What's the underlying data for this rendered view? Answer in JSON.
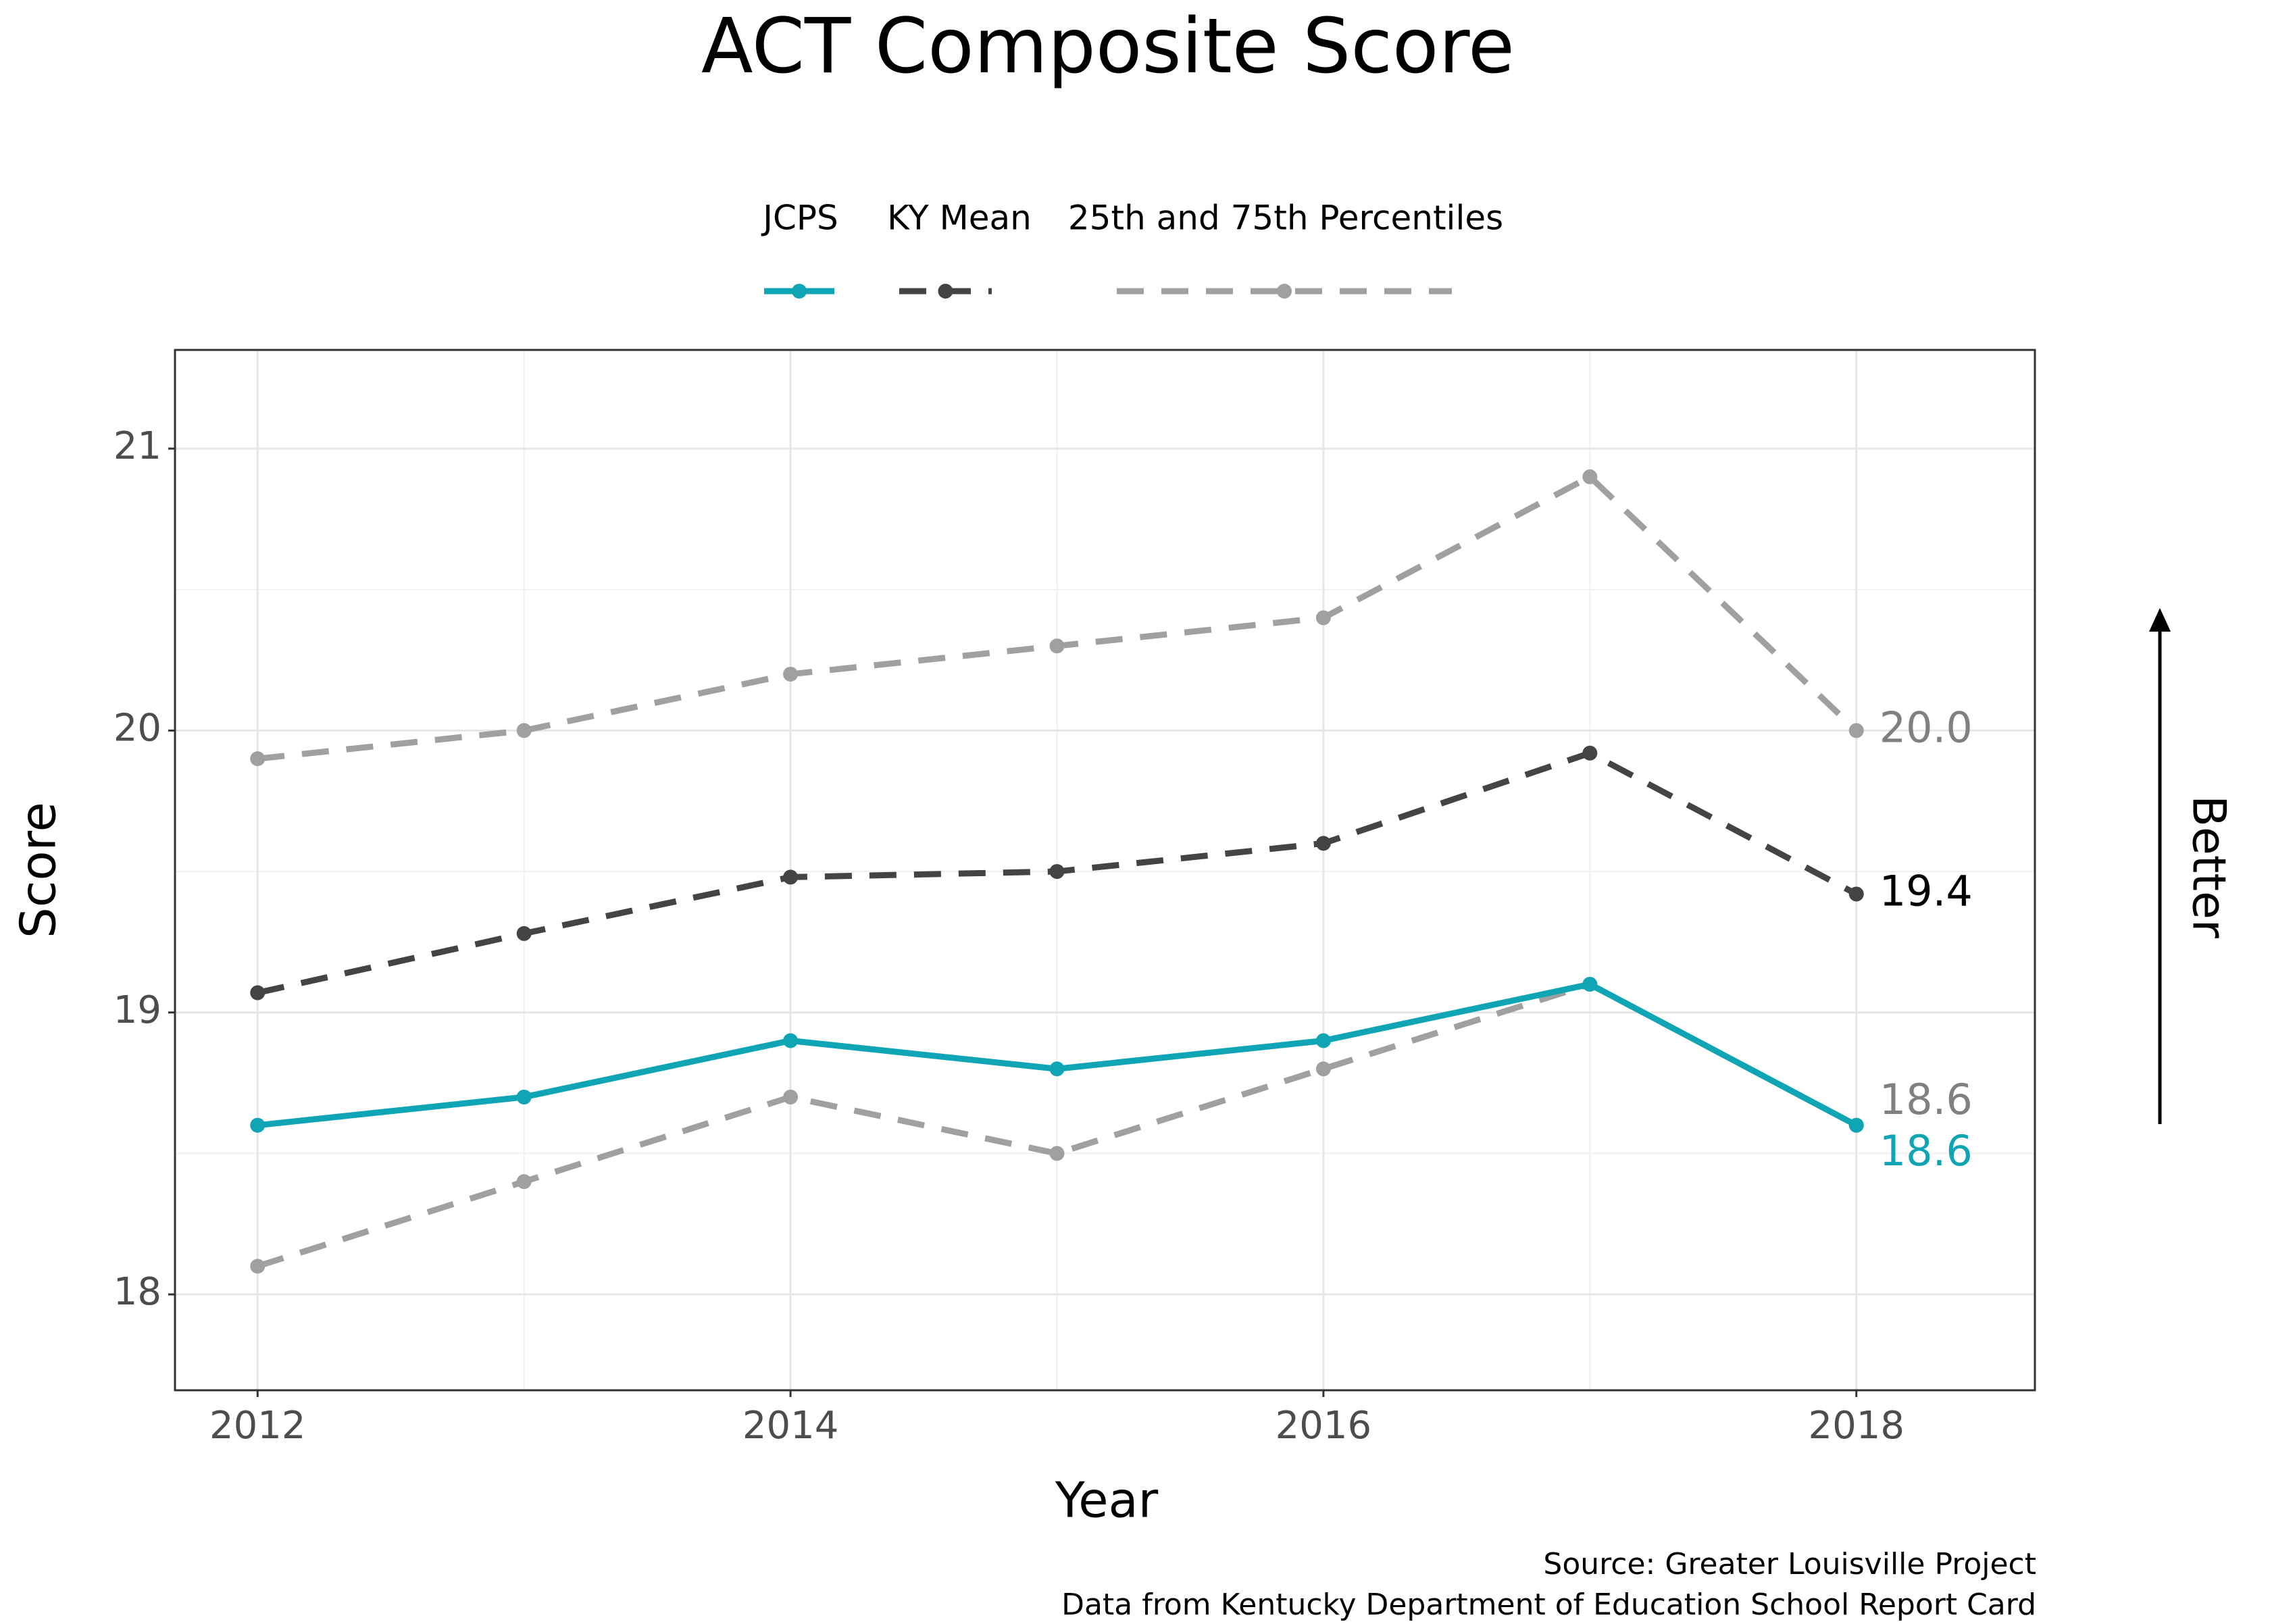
{
  "chart_data": {
    "type": "line",
    "title": "ACT Composite Score",
    "x_label": "Year",
    "y_label": "Score",
    "annotation": "Better",
    "source": [
      "Source: Greater Louisville Project",
      "Data from Kentucky Department of Education School Report Card"
    ],
    "x": [
      2012,
      2013,
      2014,
      2015,
      2016,
      2017,
      2018
    ],
    "xlim": [
      2011.69,
      2018.67
    ],
    "xticks": [
      2012,
      2014,
      2016,
      2018
    ],
    "ylim": [
      17.66,
      21.35
    ],
    "yticks": [
      18,
      19,
      20,
      21
    ],
    "grid": true,
    "legend": "top",
    "series": [
      {
        "name": "JCPS",
        "color": "#0fa5b5",
        "dash": false,
        "values": [
          18.6,
          18.7,
          18.9,
          18.8,
          18.9,
          19.1,
          18.6
        ],
        "value_labels": [
          null,
          null,
          null,
          null,
          null,
          null,
          "18.6"
        ]
      },
      {
        "name": "KY Mean",
        "color": "#444444",
        "dash": true,
        "values": [
          19.07,
          19.28,
          19.48,
          19.5,
          19.6,
          19.92,
          19.42
        ],
        "value_labels": [
          null,
          null,
          null,
          null,
          null,
          null,
          "19.4"
        ]
      }
    ],
    "percentiles": {
      "name": "25th and 75th Percentiles",
      "color": "#a0a0a0",
      "p75": {
        "values": [
          19.9,
          20.0,
          20.2,
          20.3,
          20.4,
          20.9,
          20.0
        ],
        "value_labels": [
          null,
          null,
          null,
          null,
          null,
          null,
          "20.0"
        ]
      },
      "p25": {
        "values": [
          18.1,
          18.4,
          18.7,
          18.5,
          18.8,
          19.1,
          18.6
        ],
        "value_labels": [
          null,
          null,
          null,
          null,
          null,
          null,
          "18.6"
        ]
      }
    }
  }
}
